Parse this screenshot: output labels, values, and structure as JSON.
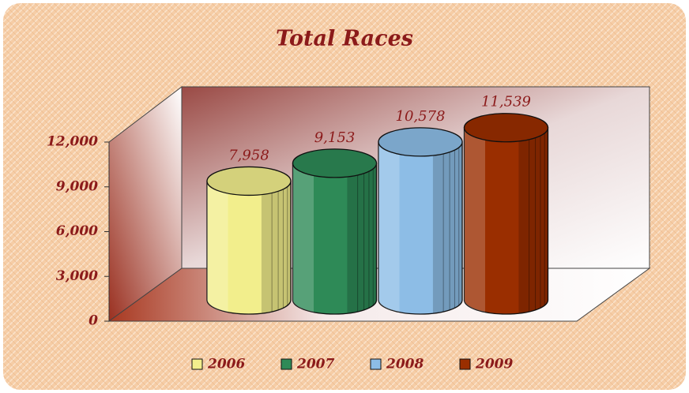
{
  "chart_data": {
    "type": "cylinder",
    "title": "Total Races",
    "categories": [
      "2006",
      "2007",
      "2008",
      "2009"
    ],
    "values": [
      7958,
      9153,
      10578,
      11539
    ],
    "value_labels": [
      "7,958",
      "9,153",
      "10,578",
      "11,539"
    ],
    "colors": [
      "#f2ee8c",
      "#2e8a57",
      "#8dbde6",
      "#9a2e00"
    ],
    "ylim": [
      0,
      12000
    ],
    "yticks": [
      0,
      {
        "value": 3000,
        "label": "3,000"
      },
      {
        "value": 6000,
        "label": "6,000"
      },
      {
        "value": 9000,
        "label": "9,000"
      },
      {
        "value": 12000,
        "label": "12,000"
      }
    ]
  }
}
